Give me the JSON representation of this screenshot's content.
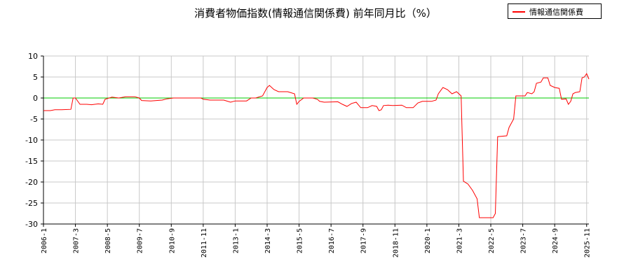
{
  "chart_data": {
    "type": "line",
    "title": "消費者物価指数(情報通信関係費) 前年同月比（%）",
    "xlabel": "",
    "ylabel": "",
    "ylim": [
      -30,
      10
    ],
    "yticks": [
      10,
      5,
      0,
      -5,
      -10,
      -15,
      -20,
      -25,
      -30
    ],
    "xlim": [
      "2006-01",
      "2025-12"
    ],
    "xticks": [
      "2006-1",
      "2007-3",
      "2008-5",
      "2009-7",
      "2010-9",
      "2011-11",
      "2013-1",
      "2014-3",
      "2015-5",
      "2016-7",
      "2017-9",
      "2018-11",
      "2020-1",
      "2021-3",
      "2022-5",
      "2023-7",
      "2024-9",
      "2025-11"
    ],
    "grid": true,
    "legend_position": "top-right",
    "reference_line": {
      "y": 0,
      "color": "#00cc00"
    },
    "series": [
      {
        "name": "情報通信関係費",
        "color": "#ff0000",
        "points": [
          [
            "2006-01",
            -3.0
          ],
          [
            "2006-04",
            -3.0
          ],
          [
            "2006-06",
            -2.8
          ],
          [
            "2006-09",
            -2.8
          ],
          [
            "2007-01",
            -2.7
          ],
          [
            "2007-02",
            0.0
          ],
          [
            "2007-03",
            0.0
          ],
          [
            "2007-05",
            -1.5
          ],
          [
            "2007-08",
            -1.5
          ],
          [
            "2007-10",
            -1.6
          ],
          [
            "2008-01",
            -1.4
          ],
          [
            "2008-03",
            -1.5
          ],
          [
            "2008-04",
            -0.3
          ],
          [
            "2008-07",
            0.2
          ],
          [
            "2008-10",
            0.0
          ],
          [
            "2009-01",
            0.3
          ],
          [
            "2009-05",
            0.3
          ],
          [
            "2009-07",
            0.0
          ],
          [
            "2009-08",
            -0.6
          ],
          [
            "2009-12",
            -0.7
          ],
          [
            "2010-05",
            -0.5
          ],
          [
            "2010-07",
            -0.2
          ],
          [
            "2010-10",
            0.0
          ],
          [
            "2011-01",
            0.0
          ],
          [
            "2011-10",
            0.0
          ],
          [
            "2011-11",
            -0.3
          ],
          [
            "2012-02",
            -0.5
          ],
          [
            "2012-08",
            -0.5
          ],
          [
            "2012-11",
            -1.0
          ],
          [
            "2013-01",
            -0.7
          ],
          [
            "2013-06",
            -0.7
          ],
          [
            "2013-08",
            0.0
          ],
          [
            "2013-10",
            0.0
          ],
          [
            "2014-01",
            0.5
          ],
          [
            "2014-03",
            2.5
          ],
          [
            "2014-04",
            3.0
          ],
          [
            "2014-06",
            2.0
          ],
          [
            "2014-08",
            1.5
          ],
          [
            "2014-12",
            1.5
          ],
          [
            "2015-03",
            1.0
          ],
          [
            "2015-04",
            -1.5
          ],
          [
            "2015-05",
            -0.8
          ],
          [
            "2015-07",
            0.0
          ],
          [
            "2015-11",
            0.0
          ],
          [
            "2016-01",
            -0.3
          ],
          [
            "2016-02",
            -0.8
          ],
          [
            "2016-04",
            -1.0
          ],
          [
            "2016-10",
            -0.9
          ],
          [
            "2016-12",
            -1.5
          ],
          [
            "2017-02",
            -2.0
          ],
          [
            "2017-04",
            -1.3
          ],
          [
            "2017-06",
            -1.0
          ],
          [
            "2017-08",
            -2.3
          ],
          [
            "2017-11",
            -2.3
          ],
          [
            "2018-01",
            -1.8
          ],
          [
            "2018-03",
            -2.0
          ],
          [
            "2018-04",
            -3.0
          ],
          [
            "2018-05",
            -2.8
          ],
          [
            "2018-06",
            -1.8
          ],
          [
            "2018-08",
            -1.7
          ],
          [
            "2018-10",
            -1.8
          ],
          [
            "2019-02",
            -1.7
          ],
          [
            "2019-04",
            -2.3
          ],
          [
            "2019-07",
            -2.3
          ],
          [
            "2019-09",
            -1.2
          ],
          [
            "2019-11",
            -0.8
          ],
          [
            "2020-03",
            -0.8
          ],
          [
            "2020-05",
            -0.5
          ],
          [
            "2020-06",
            1.0
          ],
          [
            "2020-08",
            2.5
          ],
          [
            "2020-10",
            2.0
          ],
          [
            "2020-12",
            1.0
          ],
          [
            "2021-02",
            1.5
          ],
          [
            "2021-04",
            0.5
          ],
          [
            "2021-05",
            -19.8
          ],
          [
            "2021-07",
            -20.5
          ],
          [
            "2021-09",
            -22.0
          ],
          [
            "2021-11",
            -24.0
          ],
          [
            "2021-12",
            -28.5
          ],
          [
            "2022-06",
            -28.5
          ],
          [
            "2022-07",
            -27.5
          ],
          [
            "2022-08",
            -9.2
          ],
          [
            "2022-12",
            -9.0
          ],
          [
            "2023-01",
            -7.0
          ],
          [
            "2023-03",
            -5.0
          ],
          [
            "2023-04",
            0.5
          ],
          [
            "2023-08",
            0.5
          ],
          [
            "2023-09",
            1.3
          ],
          [
            "2023-11",
            1.0
          ],
          [
            "2023-12",
            1.5
          ],
          [
            "2024-01",
            3.5
          ],
          [
            "2024-03",
            3.8
          ],
          [
            "2024-04",
            4.8
          ],
          [
            "2024-06",
            4.8
          ],
          [
            "2024-07",
            3.0
          ],
          [
            "2024-09",
            2.5
          ],
          [
            "2024-11",
            2.3
          ],
          [
            "2024-12",
            -0.3
          ],
          [
            "2025-02",
            -0.2
          ],
          [
            "2025-03",
            -1.5
          ],
          [
            "2025-04",
            -0.8
          ],
          [
            "2025-05",
            1.0
          ],
          [
            "2025-06",
            1.3
          ],
          [
            "2025-08",
            1.5
          ],
          [
            "2025-09",
            4.8
          ],
          [
            "2025-10",
            5.0
          ],
          [
            "2025-11",
            5.8
          ],
          [
            "2025-12",
            4.5
          ]
        ]
      }
    ]
  }
}
